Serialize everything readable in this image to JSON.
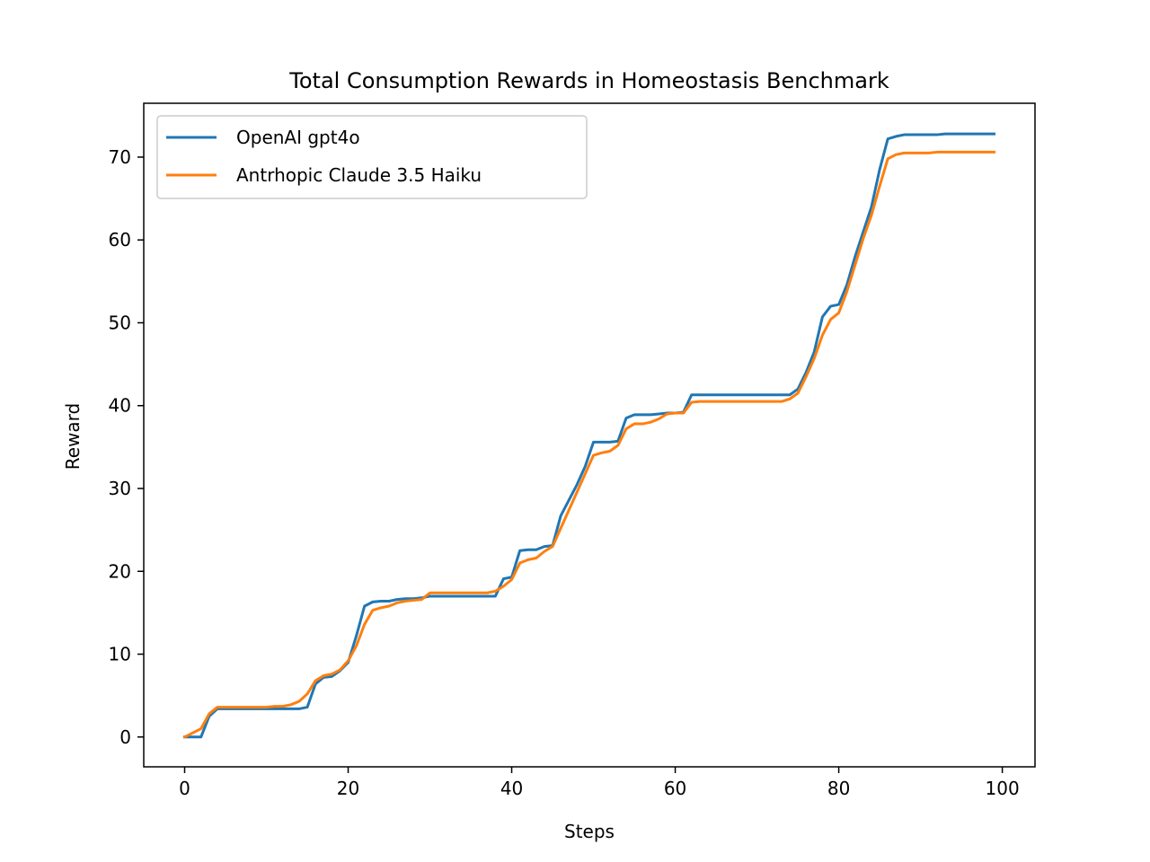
{
  "chart_data": {
    "type": "line",
    "title": "Total Consumption Rewards in Homeostasis Benchmark",
    "xlabel": "Steps",
    "ylabel": "Reward",
    "xlim": [
      -5,
      104
    ],
    "ylim": [
      -3.6,
      76.5
    ],
    "xticks": [
      0,
      20,
      40,
      60,
      80,
      100
    ],
    "yticks": [
      0,
      10,
      20,
      30,
      40,
      50,
      60,
      70
    ],
    "grid": false,
    "legend_position": "top-left",
    "series": [
      {
        "name": "OpenAI gpt4o",
        "color": "#1f77b4",
        "x": [
          0,
          1,
          2,
          3,
          4,
          5,
          6,
          7,
          8,
          9,
          10,
          11,
          12,
          13,
          14,
          15,
          16,
          17,
          18,
          19,
          20,
          21,
          22,
          23,
          24,
          25,
          26,
          27,
          28,
          29,
          30,
          31,
          32,
          33,
          34,
          35,
          36,
          37,
          38,
          39,
          40,
          41,
          42,
          43,
          44,
          45,
          46,
          47,
          48,
          49,
          50,
          51,
          52,
          53,
          54,
          55,
          56,
          57,
          58,
          59,
          60,
          61,
          62,
          63,
          64,
          65,
          66,
          67,
          68,
          69,
          70,
          71,
          72,
          73,
          74,
          75,
          76,
          77,
          78,
          79,
          80,
          81,
          82,
          83,
          84,
          85,
          86,
          87,
          88,
          89,
          90,
          91,
          92,
          93,
          94,
          95,
          96,
          97,
          98,
          99
        ],
        "y": [
          0,
          0,
          0,
          2.5,
          3.4,
          3.4,
          3.4,
          3.4,
          3.4,
          3.4,
          3.4,
          3.4,
          3.4,
          3.4,
          3.4,
          3.6,
          6.4,
          7.2,
          7.3,
          8.0,
          9.0,
          12.2,
          15.8,
          16.3,
          16.4,
          16.4,
          16.6,
          16.7,
          16.7,
          16.8,
          17.0,
          17.0,
          17.0,
          17.0,
          17.0,
          17.0,
          17.0,
          17.0,
          17.0,
          19.1,
          19.3,
          22.5,
          22.6,
          22.6,
          23.0,
          23.1,
          26.7,
          28.6,
          30.5,
          32.7,
          35.6,
          35.6,
          35.6,
          35.7,
          38.5,
          38.9,
          38.9,
          38.9,
          39.0,
          39.1,
          39.1,
          39.2,
          41.3,
          41.3,
          41.3,
          41.3,
          41.3,
          41.3,
          41.3,
          41.3,
          41.3,
          41.3,
          41.3,
          41.3,
          41.3,
          42.0,
          44.0,
          46.5,
          50.7,
          52.0,
          52.2,
          54.6,
          58.0,
          61.0,
          64.0,
          68.5,
          72.2,
          72.5,
          72.7,
          72.7,
          72.7,
          72.7,
          72.7,
          72.8,
          72.8,
          72.8,
          72.8,
          72.8,
          72.8,
          72.8
        ]
      },
      {
        "name": "Antrhopic Claude 3.5 Haiku",
        "color": "#ff7f0e",
        "x": [
          0,
          1,
          2,
          3,
          4,
          5,
          6,
          7,
          8,
          9,
          10,
          11,
          12,
          13,
          14,
          15,
          16,
          17,
          18,
          19,
          20,
          21,
          22,
          23,
          24,
          25,
          26,
          27,
          28,
          29,
          30,
          31,
          32,
          33,
          34,
          35,
          36,
          37,
          38,
          39,
          40,
          41,
          42,
          43,
          44,
          45,
          46,
          47,
          48,
          49,
          50,
          51,
          52,
          53,
          54,
          55,
          56,
          57,
          58,
          59,
          60,
          61,
          62,
          63,
          64,
          65,
          66,
          67,
          68,
          69,
          70,
          71,
          72,
          73,
          74,
          75,
          76,
          77,
          78,
          79,
          80,
          81,
          82,
          83,
          84,
          85,
          86,
          87,
          88,
          89,
          90,
          91,
          92,
          93,
          94,
          95,
          96,
          97,
          98,
          99
        ],
        "y": [
          0,
          0.5,
          1.0,
          2.8,
          3.6,
          3.6,
          3.6,
          3.6,
          3.6,
          3.6,
          3.6,
          3.7,
          3.7,
          3.9,
          4.3,
          5.2,
          6.8,
          7.4,
          7.6,
          8.1,
          9.2,
          11.0,
          13.6,
          15.3,
          15.6,
          15.8,
          16.2,
          16.4,
          16.5,
          16.6,
          17.4,
          17.4,
          17.4,
          17.4,
          17.4,
          17.4,
          17.4,
          17.4,
          17.6,
          18.2,
          19.0,
          21.0,
          21.4,
          21.6,
          22.4,
          23.0,
          25.2,
          27.4,
          29.6,
          31.8,
          34.0,
          34.3,
          34.5,
          35.2,
          37.2,
          37.8,
          37.8,
          38.0,
          38.4,
          39.0,
          39.1,
          39.1,
          40.4,
          40.5,
          40.5,
          40.5,
          40.5,
          40.5,
          40.5,
          40.5,
          40.5,
          40.5,
          40.5,
          40.5,
          40.8,
          41.5,
          43.5,
          45.7,
          48.5,
          50.4,
          51.2,
          53.8,
          57.0,
          60.2,
          63.0,
          66.5,
          69.8,
          70.3,
          70.5,
          70.5,
          70.5,
          70.5,
          70.6,
          70.6,
          70.6,
          70.6,
          70.6,
          70.6,
          70.6,
          70.6
        ]
      }
    ]
  }
}
